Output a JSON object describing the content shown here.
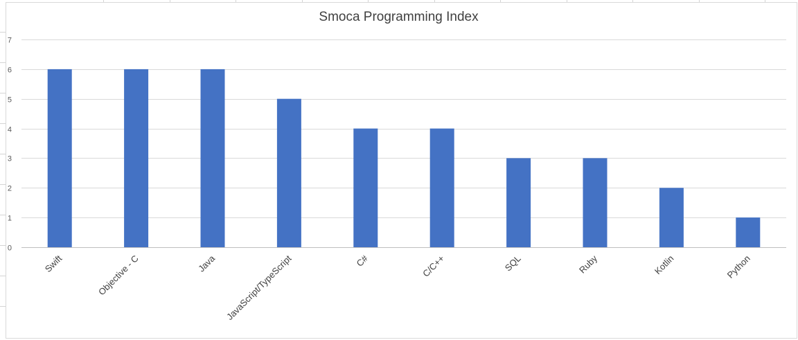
{
  "chart_data": {
    "type": "bar",
    "title": "Smoca Programming Index",
    "xlabel": "",
    "ylabel": "",
    "categories": [
      "Swift",
      "Objective - C",
      "Java",
      "JavaScript/TypeScript",
      "C#",
      "C/C++",
      "SQL",
      "Ruby",
      "Kotlin",
      "Python"
    ],
    "values": [
      6,
      6,
      6,
      5,
      4,
      4,
      3,
      3,
      2,
      1
    ],
    "ylim": [
      0,
      7
    ],
    "yticks": [
      "0",
      "1",
      "2",
      "3",
      "4",
      "5",
      "6",
      "7"
    ],
    "grid": true,
    "legend": "none",
    "bar_color": "#4472c4",
    "grid_color": "#d9d9d9"
  }
}
